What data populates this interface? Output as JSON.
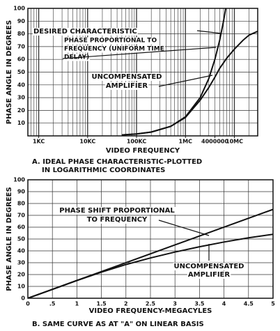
{
  "chart_data": [
    {
      "type": "line",
      "x_label": "VIDEO FREQUENCY",
      "y_label": "PHASE ANGLE IN DEGREES",
      "caption": [
        "A. IDEAL PHASE CHARACTERISTIC-PLOTTED",
        "IN LOGARITHMIC COORDINATES"
      ],
      "log_x": true,
      "minor_grid": true,
      "grid": true,
      "xlim": [
        600,
        30000000
      ],
      "xticks": [
        {
          "value": 1000,
          "label": "1KC"
        },
        {
          "value": 10000,
          "label": "10KC"
        },
        {
          "value": 100000,
          "label": "100KC"
        },
        {
          "value": 1000000,
          "label": "1MC"
        },
        4000000,
        {
          "value": 10000000,
          "label": "10MC"
        }
      ],
      "ylim": [
        0,
        100
      ],
      "yticks": [
        10,
        20,
        30,
        40,
        50,
        60,
        70,
        80,
        90,
        100
      ],
      "series": [
        {
          "color": "#111111",
          "x": [
            50000,
            100000,
            200000,
            500000,
            1000000,
            2000000,
            3000000,
            4000000,
            5000000,
            6000000,
            6670000
          ],
          "values": [
            0.75,
            1.5,
            3,
            7.5,
            15,
            30,
            45,
            60,
            75,
            90,
            100
          ]
        },
        {
          "color": "#111111",
          "x": [
            50000,
            100000,
            200000,
            500000,
            1000000,
            2000000,
            3000000,
            4000000,
            5000000,
            7000000,
            10000000,
            15000000,
            20000000,
            30000000
          ],
          "values": [
            0.75,
            1.5,
            3,
            7.5,
            14.5,
            28,
            38,
            46,
            53,
            61,
            68,
            75,
            79,
            82
          ]
        }
      ],
      "annotations": [
        {
          "lines": [
            "DESIRED CHARACTERISTIC"
          ]
        },
        {
          "lines": [
            "PHASE PROPORTIONAL TO",
            "FREQUENCY (UNIFORM TIME",
            "DELAY)"
          ]
        },
        {
          "lines": [
            "UNCOMPENSATED",
            "AMPLIFIER"
          ]
        }
      ]
    },
    {
      "type": "line",
      "x_label": "VIDEO FREQUENCY-MEGACYLES",
      "y_label": "PHASE ANGLE IN DEGREES",
      "caption": [
        "B. SAME CURVE AS AT \"A\" ON LINEAR BASIS"
      ],
      "log_x": false,
      "grid": true,
      "xlim": [
        0,
        5
      ],
      "xticks": [
        0,
        {
          "value": 0.5,
          "label": ".5"
        },
        1,
        1.5,
        2,
        2.5,
        3,
        3.5,
        4,
        4.5,
        5
      ],
      "ylim": [
        0,
        100
      ],
      "yticks": [
        0,
        10,
        20,
        30,
        40,
        50,
        60,
        70,
        80,
        90,
        100
      ],
      "series": [
        {
          "color": "#111111",
          "x": [
            0,
            5
          ],
          "values": [
            0,
            75
          ]
        },
        {
          "color": "#111111",
          "x": [
            0,
            0.5,
            1,
            1.5,
            2,
            2.5,
            3,
            3.5,
            4,
            4.5,
            5
          ],
          "values": [
            0,
            7.5,
            15,
            22,
            28.5,
            34,
            39,
            43.5,
            47.5,
            51,
            54
          ]
        }
      ],
      "annotations": [
        {
          "lines": [
            "PHASE SHIFT PROPORTIONAL",
            "TO FREQUENCY"
          ]
        },
        {
          "lines": [
            "UNCOMPENSATED",
            "AMPLIFIER"
          ]
        }
      ]
    }
  ]
}
